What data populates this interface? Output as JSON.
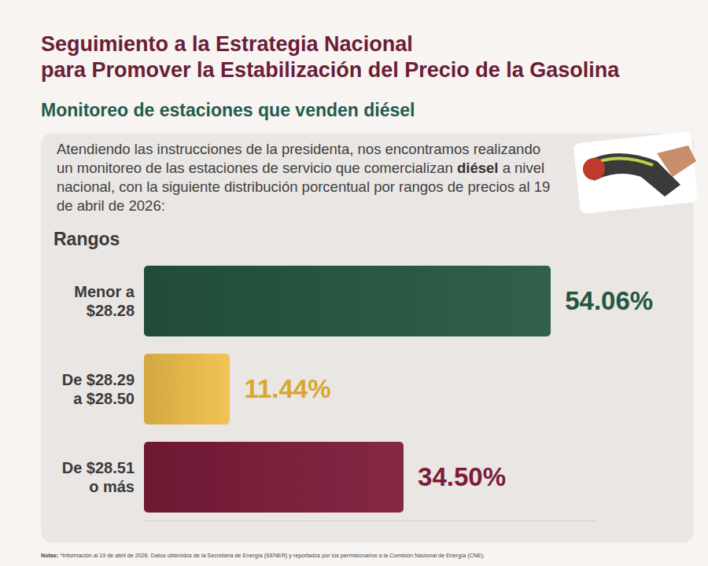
{
  "chart_data": {
    "type": "bar",
    "orientation": "horizontal",
    "title": "Seguimiento a la Estrategia Nacional\npara Promover la Estabilización del Precio de la Gasolina",
    "subtitle": "Monitoreo de estaciones que venden diésel",
    "description": [
      "Atendiendo las instrucciones de la presidenta, nos encontramos realizando un monitoreo de las estaciones de servicio que comercializan",
      "diésel",
      "a nivel nacional, con la siguiente distribución porcentual por rangos de precios al 19 de abril de 2026:"
    ],
    "ylabel": "Rangos",
    "categories": [
      "Menor a $28.28",
      "De $28.29 a $28.50",
      "De $28.51 o más"
    ],
    "values": [
      54.06,
      11.44,
      34.5
    ],
    "value_labels": [
      "54.06%",
      "11.44%",
      "34.50%"
    ],
    "colors": [
      "#245640",
      "#f1c04a",
      "#7d1b39"
    ],
    "data_labels": true,
    "tick_labels": false,
    "grid": false,
    "xlim": [
      0,
      60
    ],
    "footnote": {
      "label": "Notas:",
      "text": "*Información al 19 de abril de 2026. Datos obtenidos de la Secretaría de Energía (SENER) y reportados por los permisionarios a la Comisión Nacional de Energía (CNE)."
    }
  }
}
